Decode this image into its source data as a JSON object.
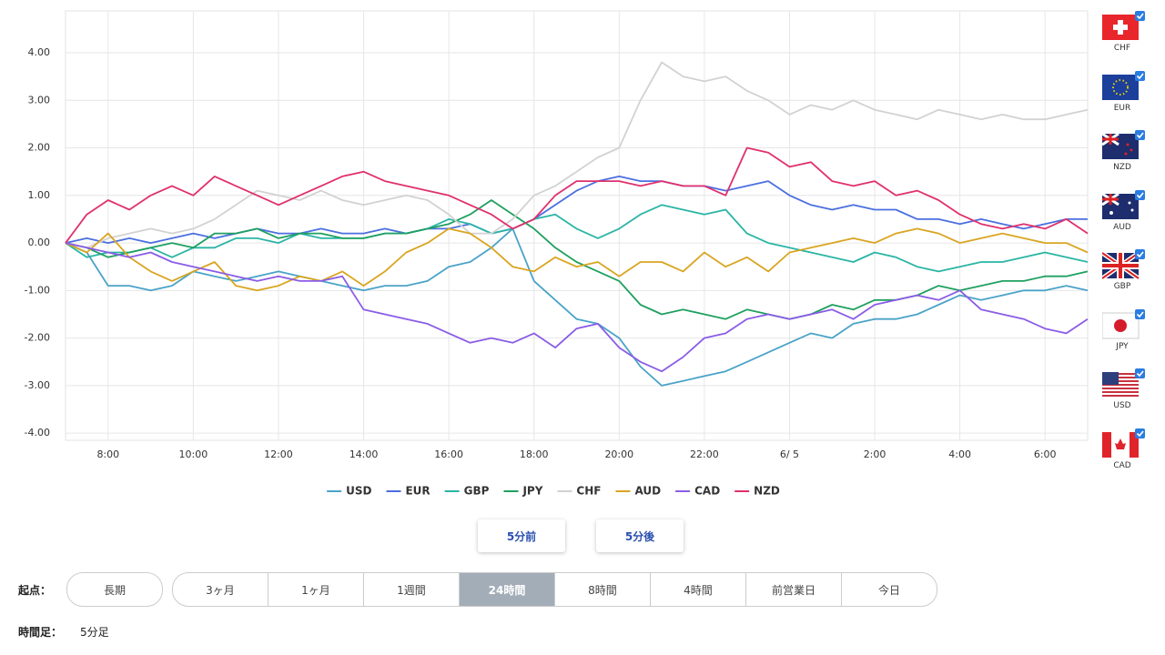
{
  "chart_data": {
    "type": "line",
    "categories": [
      null,
      null,
      "8:00",
      null,
      null,
      null,
      "10:00",
      null,
      null,
      null,
      "12:00",
      null,
      null,
      null,
      "14:00",
      null,
      null,
      null,
      "16:00",
      null,
      null,
      null,
      "18:00",
      null,
      null,
      null,
      "20:00",
      null,
      null,
      null,
      "22:00",
      null,
      null,
      null,
      "6/ 5",
      null,
      null,
      null,
      "2:00",
      null,
      null,
      null,
      "4:00",
      null,
      null,
      null,
      "6:00",
      null,
      null
    ],
    "ylim": [
      -4.15,
      4.88
    ],
    "yticks": [
      {
        "value": -4,
        "label": "-4.00"
      },
      {
        "value": -3,
        "label": "-3.00"
      },
      {
        "value": -2,
        "label": "-2.00"
      },
      {
        "value": -1,
        "label": "-1.00"
      },
      {
        "value": 0,
        "label": "0.00"
      },
      {
        "value": 1,
        "label": "1.00"
      },
      {
        "value": 2,
        "label": "2.00"
      },
      {
        "value": 3,
        "label": "3.00"
      },
      {
        "value": 4,
        "label": "4.00"
      }
    ],
    "grid": true,
    "series": [
      {
        "name": "USD",
        "color": "#4aa3c8",
        "values": [
          0,
          -0.2,
          -0.9,
          -0.9,
          -1.0,
          -0.9,
          -0.6,
          -0.7,
          -0.8,
          -0.7,
          -0.6,
          -0.7,
          -0.8,
          -0.9,
          -1.0,
          -0.9,
          -0.9,
          -0.8,
          -0.5,
          -0.4,
          -0.1,
          0.3,
          -0.8,
          -1.2,
          -1.6,
          -1.7,
          -2.0,
          -2.6,
          -3.0,
          -2.9,
          -2.8,
          -2.7,
          -2.5,
          -2.3,
          -2.1,
          -1.9,
          -2.0,
          -1.7,
          -1.6,
          -1.6,
          -1.5,
          -1.3,
          -1.1,
          -1.2,
          -1.1,
          -1.0,
          -1.0,
          -0.9,
          -1.0
        ]
      },
      {
        "name": "EUR",
        "color": "#4b6fe0",
        "values": [
          0,
          0.1,
          0,
          0.1,
          0,
          0.1,
          0.2,
          0.1,
          0.2,
          0.3,
          0.2,
          0.2,
          0.3,
          0.2,
          0.2,
          0.3,
          0.2,
          0.3,
          0.3,
          0.4,
          0.2,
          0.3,
          0.5,
          0.8,
          1.1,
          1.3,
          1.4,
          1.3,
          1.3,
          1.2,
          1.2,
          1.1,
          1.2,
          1.3,
          1.0,
          0.8,
          0.7,
          0.8,
          0.7,
          0.7,
          0.5,
          0.5,
          0.4,
          0.5,
          0.4,
          0.3,
          0.4,
          0.5,
          0.5
        ]
      },
      {
        "name": "GBP",
        "color": "#2ab5a5",
        "values": [
          0,
          -0.3,
          -0.2,
          -0.2,
          -0.1,
          -0.3,
          -0.1,
          -0.1,
          0.1,
          0.1,
          0.0,
          0.2,
          0.1,
          0.1,
          0.1,
          0.2,
          0.2,
          0.3,
          0.5,
          0.4,
          0.2,
          0.3,
          0.5,
          0.6,
          0.3,
          0.1,
          0.3,
          0.6,
          0.8,
          0.7,
          0.6,
          0.7,
          0.2,
          0.0,
          -0.1,
          -0.2,
          -0.3,
          -0.4,
          -0.2,
          -0.3,
          -0.5,
          -0.6,
          -0.5,
          -0.4,
          -0.4,
          -0.3,
          -0.2,
          -0.3,
          -0.4
        ]
      },
      {
        "name": "JPY",
        "color": "#1fa060",
        "values": [
          0,
          -0.1,
          -0.3,
          -0.2,
          -0.1,
          0.0,
          -0.1,
          0.2,
          0.2,
          0.3,
          0.1,
          0.2,
          0.2,
          0.1,
          0.1,
          0.2,
          0.2,
          0.3,
          0.4,
          0.6,
          0.9,
          0.6,
          0.3,
          -0.1,
          -0.4,
          -0.6,
          -0.8,
          -1.3,
          -1.5,
          -1.4,
          -1.5,
          -1.6,
          -1.4,
          -1.5,
          -1.6,
          -1.5,
          -1.3,
          -1.4,
          -1.2,
          -1.2,
          -1.1,
          -0.9,
          -1.0,
          -0.9,
          -0.8,
          -0.8,
          -0.7,
          -0.7,
          -0.6
        ]
      },
      {
        "name": "CHF",
        "color": "#d2d2d2",
        "values": [
          0,
          -0.1,
          0.1,
          0.2,
          0.3,
          0.2,
          0.3,
          0.5,
          0.8,
          1.1,
          1.0,
          0.9,
          1.1,
          0.9,
          0.8,
          0.9,
          1.0,
          0.9,
          0.6,
          0.2,
          0.2,
          0.5,
          1.0,
          1.2,
          1.5,
          1.8,
          2.0,
          3.0,
          3.8,
          3.5,
          3.4,
          3.5,
          3.2,
          3.0,
          2.7,
          2.9,
          2.8,
          3.0,
          2.8,
          2.7,
          2.6,
          2.8,
          2.7,
          2.6,
          2.7,
          2.6,
          2.6,
          2.7,
          2.8
        ]
      },
      {
        "name": "AUD",
        "color": "#d9a521",
        "values": [
          0,
          -0.2,
          0.2,
          -0.3,
          -0.6,
          -0.8,
          -0.6,
          -0.4,
          -0.9,
          -1.0,
          -0.9,
          -0.7,
          -0.8,
          -0.6,
          -0.9,
          -0.6,
          -0.2,
          0.0,
          0.3,
          0.2,
          -0.1,
          -0.5,
          -0.6,
          -0.3,
          -0.5,
          -0.4,
          -0.7,
          -0.4,
          -0.4,
          -0.6,
          -0.2,
          -0.5,
          -0.3,
          -0.6,
          -0.2,
          -0.1,
          0.0,
          0.1,
          0.0,
          0.2,
          0.3,
          0.2,
          0.0,
          0.1,
          0.2,
          0.1,
          0.0,
          0.0,
          -0.2
        ]
      },
      {
        "name": "CAD",
        "color": "#8a5ce6",
        "values": [
          0,
          -0.1,
          -0.2,
          -0.3,
          -0.2,
          -0.4,
          -0.5,
          -0.6,
          -0.7,
          -0.8,
          -0.7,
          -0.8,
          -0.8,
          -0.7,
          -1.4,
          -1.5,
          -1.6,
          -1.7,
          -1.9,
          -2.1,
          -2.0,
          -2.1,
          -1.9,
          -2.2,
          -1.8,
          -1.7,
          -2.2,
          -2.5,
          -2.7,
          -2.4,
          -2.0,
          -1.9,
          -1.6,
          -1.5,
          -1.6,
          -1.5,
          -1.4,
          -1.6,
          -1.3,
          -1.2,
          -1.1,
          -1.2,
          -1.0,
          -1.4,
          -1.5,
          -1.6,
          -1.8,
          -1.9,
          -1.6
        ]
      },
      {
        "name": "NZD",
        "color": "#e0306e",
        "values": [
          0,
          0.6,
          0.9,
          0.7,
          1.0,
          1.2,
          1.0,
          1.4,
          1.2,
          1.0,
          0.8,
          1.0,
          1.2,
          1.4,
          1.5,
          1.3,
          1.2,
          1.1,
          1.0,
          0.8,
          0.6,
          0.3,
          0.5,
          1.0,
          1.3,
          1.3,
          1.3,
          1.2,
          1.3,
          1.2,
          1.2,
          1.0,
          2.0,
          1.9,
          1.6,
          1.7,
          1.3,
          1.2,
          1.3,
          1.0,
          1.1,
          0.9,
          0.6,
          0.4,
          0.3,
          0.4,
          0.3,
          0.5,
          0.2
        ]
      }
    ]
  },
  "flags": [
    "CHF",
    "EUR",
    "NZD",
    "AUD",
    "GBP",
    "JPY",
    "USD",
    "CAD"
  ],
  "controls": {
    "prev": "5分前",
    "next": "5分後",
    "start_label": "起点：",
    "long_term": "長期",
    "ranges": [
      "3ヶ月",
      "1ヶ月",
      "1週間",
      "24時間",
      "8時間",
      "4時間",
      "前営業日",
      "今日"
    ],
    "selected_range": 3,
    "timeframe_label": "時間足：",
    "timeframe": "5分足"
  }
}
